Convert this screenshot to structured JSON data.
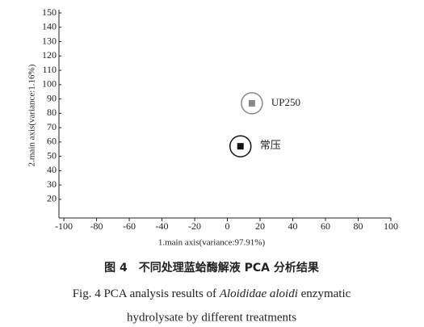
{
  "chart_data": {
    "type": "scatter",
    "xlabel": "1.main axis(variance:97.91%)",
    "ylabel": "2.main axis(variance:1.16%)",
    "xlim": [
      -103,
      100
    ],
    "xticks": [
      -100,
      -80,
      -60,
      -40,
      -20,
      0,
      20,
      40,
      60,
      80,
      100
    ],
    "ylim": [
      7,
      150
    ],
    "yticks": [
      20,
      30,
      40,
      50,
      60,
      70,
      80,
      90,
      100,
      110,
      120,
      130,
      140,
      150
    ],
    "series": [
      {
        "name": "UP250",
        "color": "#888888",
        "x": [
          15
        ],
        "values": [
          87
        ]
      },
      {
        "name": "常压",
        "color": "#111111",
        "x": [
          8
        ],
        "values": [
          57
        ]
      }
    ]
  },
  "caption": {
    "cn": "图 4　不同处理蓝蛤酶解液 PCA 分析结果",
    "en_1": "Fig. 4 PCA analysis results of ",
    "en_italic": "Aloididae aloidi",
    "en_2": " enzymatic",
    "en_3": "hydrolysate by different treatments"
  }
}
